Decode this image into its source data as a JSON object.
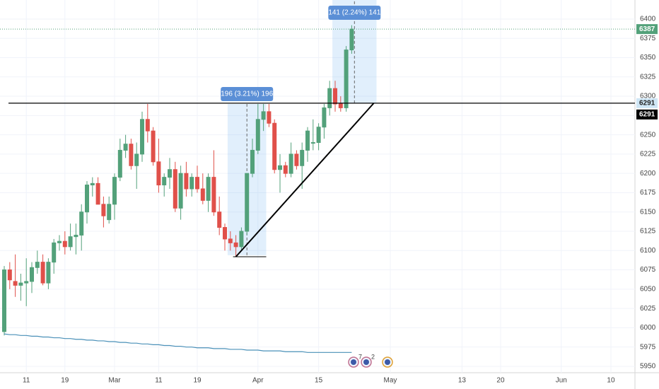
{
  "chart_data": {
    "type": "candlestick",
    "x": [
      0,
      1,
      2,
      3,
      4,
      5,
      6,
      7,
      8,
      9,
      10,
      11,
      12,
      13,
      14,
      15,
      16,
      17,
      18,
      19,
      20,
      21,
      22,
      23,
      24,
      25,
      26,
      27,
      28,
      29,
      30,
      31,
      32,
      33,
      34,
      35,
      36,
      37,
      38,
      39,
      40,
      41,
      42,
      43,
      44,
      45,
      46,
      47,
      48,
      49,
      50,
      51,
      52,
      53,
      54,
      55,
      56,
      57,
      58,
      59,
      60,
      61,
      62,
      63
    ],
    "open": [
      5995,
      6075,
      6060,
      6055,
      6058,
      6060,
      6078,
      6085,
      6058,
      6085,
      6110,
      6112,
      6105,
      6118,
      6120,
      6150,
      6185,
      6187,
      6160,
      6140,
      6160,
      6195,
      6230,
      6238,
      6210,
      6225,
      6270,
      6255,
      6215,
      6185,
      6195,
      6205,
      6155,
      6200,
      6180,
      6195,
      6180,
      6165,
      6195,
      6150,
      6130,
      6115,
      6110,
      6105,
      6125,
      6200,
      6230,
      6270,
      6280,
      6265,
      6205,
      6210,
      6200,
      6225,
      6210,
      6230,
      6240,
      6240,
      6260,
      6285,
      6310,
      6290,
      6285,
      6360
    ],
    "high": [
      6080,
      6085,
      6095,
      6070,
      6090,
      6085,
      6100,
      6095,
      6090,
      6115,
      6120,
      6125,
      6135,
      6135,
      6160,
      6190,
      6195,
      6195,
      6170,
      6170,
      6200,
      6245,
      6250,
      6245,
      6240,
      6280,
      6290,
      6260,
      6245,
      6200,
      6220,
      6215,
      6210,
      6215,
      6200,
      6210,
      6200,
      6200,
      6230,
      6170,
      6135,
      6125,
      6120,
      6130,
      6200,
      6245,
      6290,
      6290,
      6290,
      6270,
      6225,
      6215,
      6240,
      6230,
      6240,
      6260,
      6270,
      6265,
      6290,
      6320,
      6320,
      6300,
      6365,
      6392
    ],
    "low": [
      5990,
      6050,
      6040,
      6035,
      6028,
      6045,
      6070,
      6055,
      6050,
      6070,
      6100,
      6095,
      6100,
      6095,
      6100,
      6135,
      6170,
      6160,
      6130,
      6135,
      6140,
      6190,
      6220,
      6205,
      6180,
      6215,
      6240,
      6210,
      6175,
      6170,
      6180,
      6150,
      6140,
      6170,
      6170,
      6175,
      6160,
      6150,
      6145,
      6120,
      6100,
      6100,
      6092,
      6100,
      6120,
      6195,
      6225,
      6255,
      6260,
      6200,
      6175,
      6195,
      6195,
      6205,
      6180,
      6215,
      6230,
      6230,
      6245,
      6275,
      6280,
      6280,
      6280,
      6355
    ],
    "close": [
      6075,
      6062,
      6055,
      6058,
      6060,
      6078,
      6085,
      6058,
      6085,
      6110,
      6112,
      6105,
      6118,
      6120,
      6150,
      6185,
      6187,
      6160,
      6145,
      6160,
      6195,
      6230,
      6238,
      6210,
      6225,
      6270,
      6255,
      6215,
      6185,
      6195,
      6205,
      6155,
      6200,
      6180,
      6195,
      6180,
      6165,
      6195,
      6150,
      6130,
      6115,
      6110,
      6105,
      6125,
      6200,
      6230,
      6270,
      6280,
      6265,
      6205,
      6210,
      6200,
      6225,
      6210,
      6230,
      6255,
      6240,
      6260,
      6285,
      6310,
      6290,
      6285,
      6360,
      6387
    ],
    "up_color": "#53a17a",
    "down_color": "#e0504a",
    "moving_average": {
      "color": "#4a90b8",
      "values": [
        5992,
        5991,
        5991,
        5990,
        5990,
        5989,
        5989,
        5988,
        5988,
        5987,
        5987,
        5986,
        5986,
        5985,
        5985,
        5984,
        5984,
        5983,
        5983,
        5982,
        5982,
        5981,
        5981,
        5980,
        5980,
        5979,
        5979,
        5978,
        5978,
        5977,
        5977,
        5976,
        5976,
        5975,
        5975,
        5974,
        5974,
        5974,
        5973,
        5973,
        5973,
        5972,
        5972,
        5972,
        5971,
        5971,
        5971,
        5970,
        5970,
        5970,
        5970,
        5969,
        5969,
        5969,
        5969,
        5968,
        5968,
        5968,
        5968,
        5968,
        5968,
        5968,
        5968,
        5968
      ]
    },
    "xlim": [
      -0.77,
      114.36
    ],
    "xticks": [
      {
        "value": 4,
        "label": "11"
      },
      {
        "value": 11,
        "label": "19"
      },
      {
        "value": 20,
        "label": "Mar"
      },
      {
        "value": 28,
        "label": "11"
      },
      {
        "value": 35,
        "label": "19"
      },
      {
        "value": 46,
        "label": "Apr"
      },
      {
        "value": 57,
        "label": "15"
      },
      {
        "value": 70,
        "label": "May"
      },
      {
        "value": 83,
        "label": "13"
      },
      {
        "value": 90,
        "label": "20"
      },
      {
        "value": 101,
        "label": "Jun"
      },
      {
        "value": 110,
        "label": "10"
      }
    ],
    "ylim": [
      5941.7,
      6424.7
    ],
    "yticks": [
      5950,
      5975,
      6000,
      6025,
      6050,
      6075,
      6100,
      6125,
      6150,
      6175,
      6200,
      6225,
      6250,
      6275,
      6300,
      6325,
      6350,
      6375,
      6400
    ],
    "grid": true,
    "hline": {
      "value": 6291,
      "color": "#000000"
    },
    "trendline": {
      "x": [
        42,
        67
      ],
      "y": [
        6092,
        6291
      ],
      "color": "#000000"
    },
    "measures": [
      {
        "label": "196 (3.21%) 196",
        "x": [
          41,
          47
        ],
        "y": [
          6094,
          6290
        ]
      },
      {
        "label": "141 (2.24%) 141",
        "x": [
          60,
          67
        ],
        "y": [
          6291,
          6432
        ]
      }
    ],
    "event_labels": [
      "7",
      "2"
    ]
  }
}
